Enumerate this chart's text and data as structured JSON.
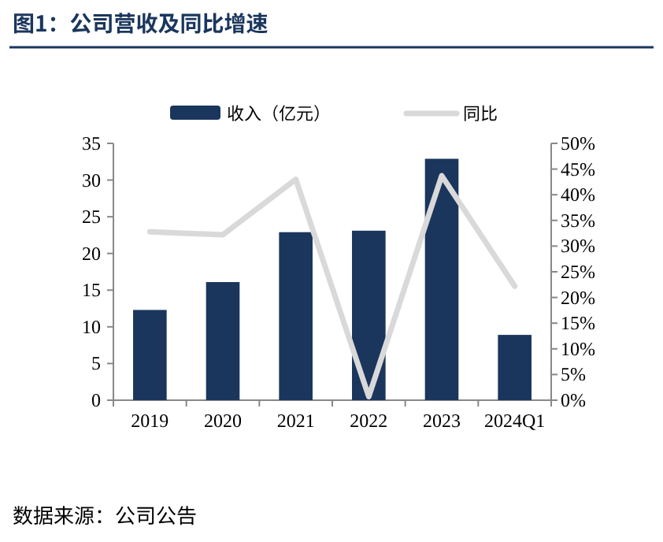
{
  "chart_data": {
    "type": "bar",
    "title": "图1：公司营收及同比增速",
    "categories": [
      "2019",
      "2020",
      "2021",
      "2022",
      "2023",
      "2024Q1"
    ],
    "series": [
      {
        "name": "收入（亿元）",
        "color": "#1b365d",
        "values": [
          12.3,
          16.1,
          22.9,
          23.1,
          32.9,
          8.9
        ]
      },
      {
        "name": "同比",
        "type": "line",
        "axis": "y2",
        "color": "#d9d9d9",
        "values": [
          32.8,
          32.2,
          43.0,
          0.7,
          43.7,
          22.2
        ]
      }
    ],
    "ylim": [
      0,
      35
    ],
    "yticks": [
      0,
      5,
      10,
      15,
      20,
      25,
      30,
      35
    ],
    "y2lim": [
      0,
      50
    ],
    "y2ticks": [
      {
        "value": 0,
        "label": "0%"
      },
      {
        "value": 5,
        "label": "5%"
      },
      {
        "value": 10,
        "label": "10%"
      },
      {
        "value": 15,
        "label": "15%"
      },
      {
        "value": 20,
        "label": "20%"
      },
      {
        "value": 25,
        "label": "25%"
      },
      {
        "value": 30,
        "label": "30%"
      },
      {
        "value": 35,
        "label": "35%"
      },
      {
        "value": 40,
        "label": "40%"
      },
      {
        "value": 45,
        "label": "45%"
      },
      {
        "value": 50,
        "label": "50%"
      }
    ],
    "legend": "top",
    "annotations": [
      "数据来源：公司公告"
    ]
  }
}
